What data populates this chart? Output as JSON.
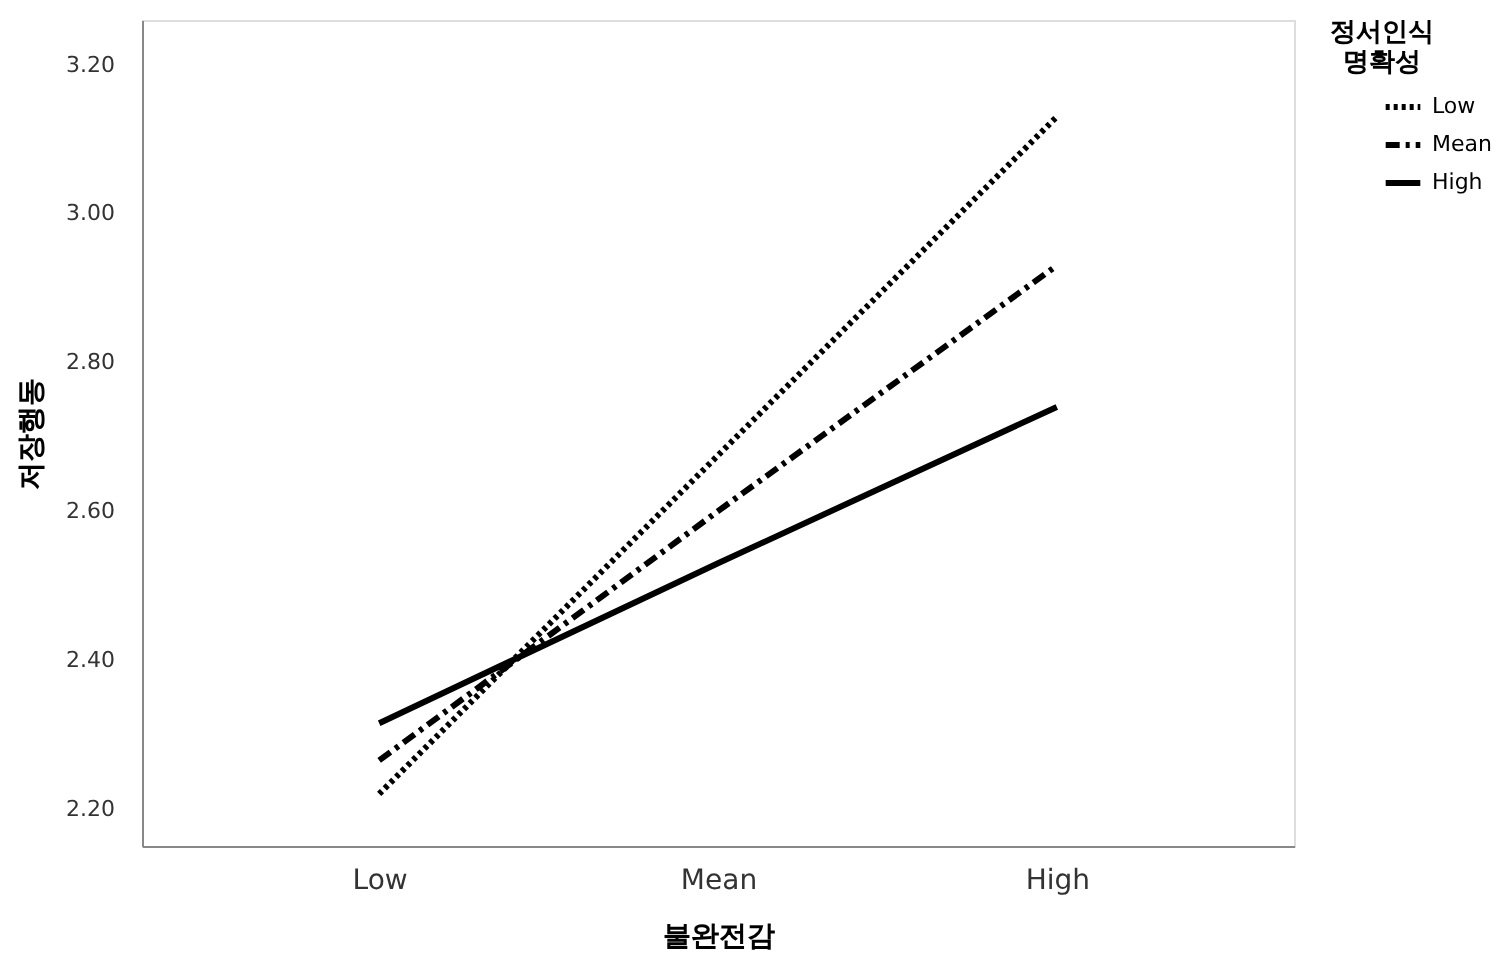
{
  "chart_data": {
    "type": "line",
    "xlabel": "불완전감",
    "ylabel": "저장행동",
    "legend_title": "정서인식 명확성",
    "categories": [
      "Low",
      "Mean",
      "High"
    ],
    "series": [
      {
        "name": "Low",
        "color": "#000000",
        "line_style": "dotted",
        "values": [
          2.22,
          2.675,
          3.13
        ]
      },
      {
        "name": "Mean",
        "color": "#000000",
        "line_style": "dashdot",
        "values": [
          2.265,
          2.6,
          2.93
        ]
      },
      {
        "name": "High",
        "color": "#000000",
        "line_style": "solid",
        "values": [
          2.315,
          2.53,
          2.74
        ]
      }
    ],
    "ylim": [
      2.15,
      3.26
    ],
    "yticks": [
      {
        "value": 2.2,
        "label": "2.20"
      },
      {
        "value": 2.4,
        "label": "2.40"
      },
      {
        "value": 2.6,
        "label": "2.60"
      },
      {
        "value": 2.8,
        "label": "2.80"
      },
      {
        "value": 3.0,
        "label": "3.00"
      },
      {
        "value": 3.2,
        "label": "3.20"
      }
    ],
    "grid": false,
    "legend": "top right",
    "marker": "none"
  }
}
